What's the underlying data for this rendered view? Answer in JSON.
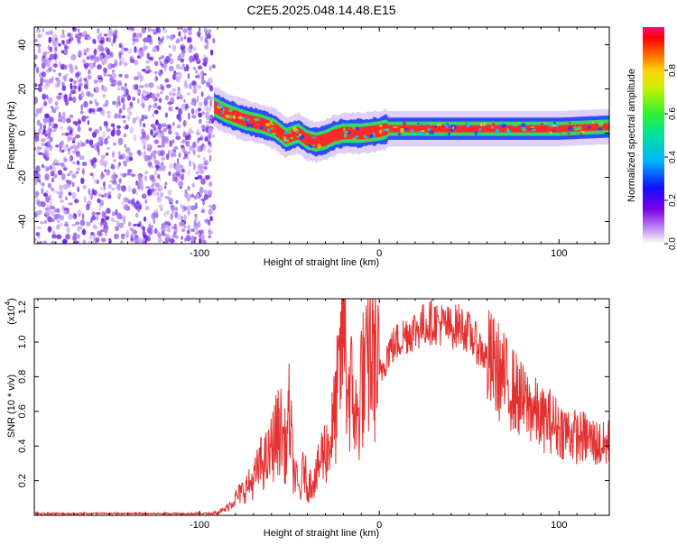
{
  "figure_title": "C2E5.2025.048.14.48.E15",
  "colors": {
    "snr_line": "#e53030",
    "scatter_purple": "#6b1de8",
    "ridge_core": "#ff2a2a",
    "ridge_mid": "#35e05a",
    "ridge_outer": "#1a40ff",
    "axis": "#000000"
  },
  "chart_data": [
    {
      "type": "heatmap",
      "title": "C2E5.2025.048.14.48.E15",
      "xlabel": "Height of straight line (km)",
      "ylabel": "Frequency (Hz)",
      "xlim": [
        -192,
        128
      ],
      "ylim": [
        -50,
        48
      ],
      "xticks": [
        -100,
        0,
        100
      ],
      "xtick_labels": [
        "-100",
        "0",
        "100"
      ],
      "yticks": [
        -40,
        -20,
        0,
        20,
        40
      ],
      "ytick_labels": [
        "-40",
        "-20",
        "0",
        "20",
        "40"
      ],
      "grid": false,
      "noise_region_x": [
        -192,
        -92
      ],
      "ridge": {
        "x": [
          -92,
          -85,
          -75,
          -65,
          -58,
          -52,
          -45,
          -40,
          -35,
          -30,
          -25,
          -20,
          -10,
          0,
          5,
          20,
          50,
          80,
          100,
          128
        ],
        "freq": [
          12,
          9,
          6,
          4,
          2,
          -2,
          0,
          -3,
          -4,
          -3,
          -1,
          0,
          0,
          1,
          2,
          2,
          2,
          2,
          2,
          3
        ]
      },
      "colorbar": {
        "label": "Normalized spectral amplitude",
        "range": [
          0,
          1
        ],
        "ticks": [
          0.0,
          0.2,
          0.4,
          0.6,
          0.8
        ],
        "tick_labels": [
          "0.0",
          "0.2",
          "0.4",
          "0.6",
          "0.8"
        ],
        "colormap": [
          "#ffffff",
          "#9400d3",
          "#0000ff",
          "#00bfff",
          "#00ff7f",
          "#7fff00",
          "#ffff00",
          "#ff8c00",
          "#ff0000",
          "#ff1493"
        ]
      }
    },
    {
      "type": "line",
      "xlabel": "Height of straight line (km)",
      "ylabel": "SNR (10 * v/v)",
      "scale_label": "(x10",
      "scale_exponent": "4",
      "xlim": [
        -192,
        128
      ],
      "ylim": [
        0,
        1.25
      ],
      "xticks": [
        -100,
        0,
        100
      ],
      "xtick_labels": [
        "-100",
        "0",
        "100"
      ],
      "yticks": [
        0.2,
        0.4,
        0.6,
        0.8,
        1.0,
        1.2
      ],
      "ytick_labels": [
        "0.2",
        "0.4",
        "0.6",
        "0.8",
        "1.0",
        "1.2"
      ],
      "grid": false,
      "series": [
        {
          "color": "#e53030",
          "x": [
            -192,
            -160,
            -130,
            -100,
            -90,
            -86,
            -80,
            -75,
            -70,
            -66,
            -62,
            -58,
            -55,
            -52,
            -50,
            -48,
            -46,
            -44,
            -42,
            -40,
            -38,
            -35,
            -32,
            -28,
            -25,
            -22,
            -20,
            -18,
            -15,
            -12,
            -10,
            -8,
            -5,
            -2,
            0,
            5,
            10,
            15,
            20,
            25,
            30,
            35,
            40,
            45,
            50,
            55,
            60,
            65,
            70,
            75,
            80,
            85,
            90,
            95,
            100,
            105,
            110,
            115,
            120,
            125,
            128
          ],
          "y": [
            0.01,
            0.01,
            0.01,
            0.01,
            0.02,
            0.03,
            0.1,
            0.15,
            0.2,
            0.3,
            0.32,
            0.45,
            0.5,
            0.38,
            0.6,
            0.28,
            0.2,
            0.12,
            0.3,
            0.15,
            0.2,
            0.22,
            0.35,
            0.4,
            0.55,
            0.8,
            1.25,
            0.75,
            0.7,
            0.5,
            0.82,
            0.75,
            0.95,
            0.88,
            0.8,
            0.95,
            1.0,
            1.05,
            1.07,
            1.1,
            1.12,
            1.1,
            1.08,
            1.1,
            1.05,
            0.98,
            0.9,
            0.85,
            0.78,
            0.72,
            0.65,
            0.62,
            0.55,
            0.55,
            0.5,
            0.48,
            0.45,
            0.45,
            0.42,
            0.4,
            0.42
          ]
        }
      ]
    }
  ]
}
